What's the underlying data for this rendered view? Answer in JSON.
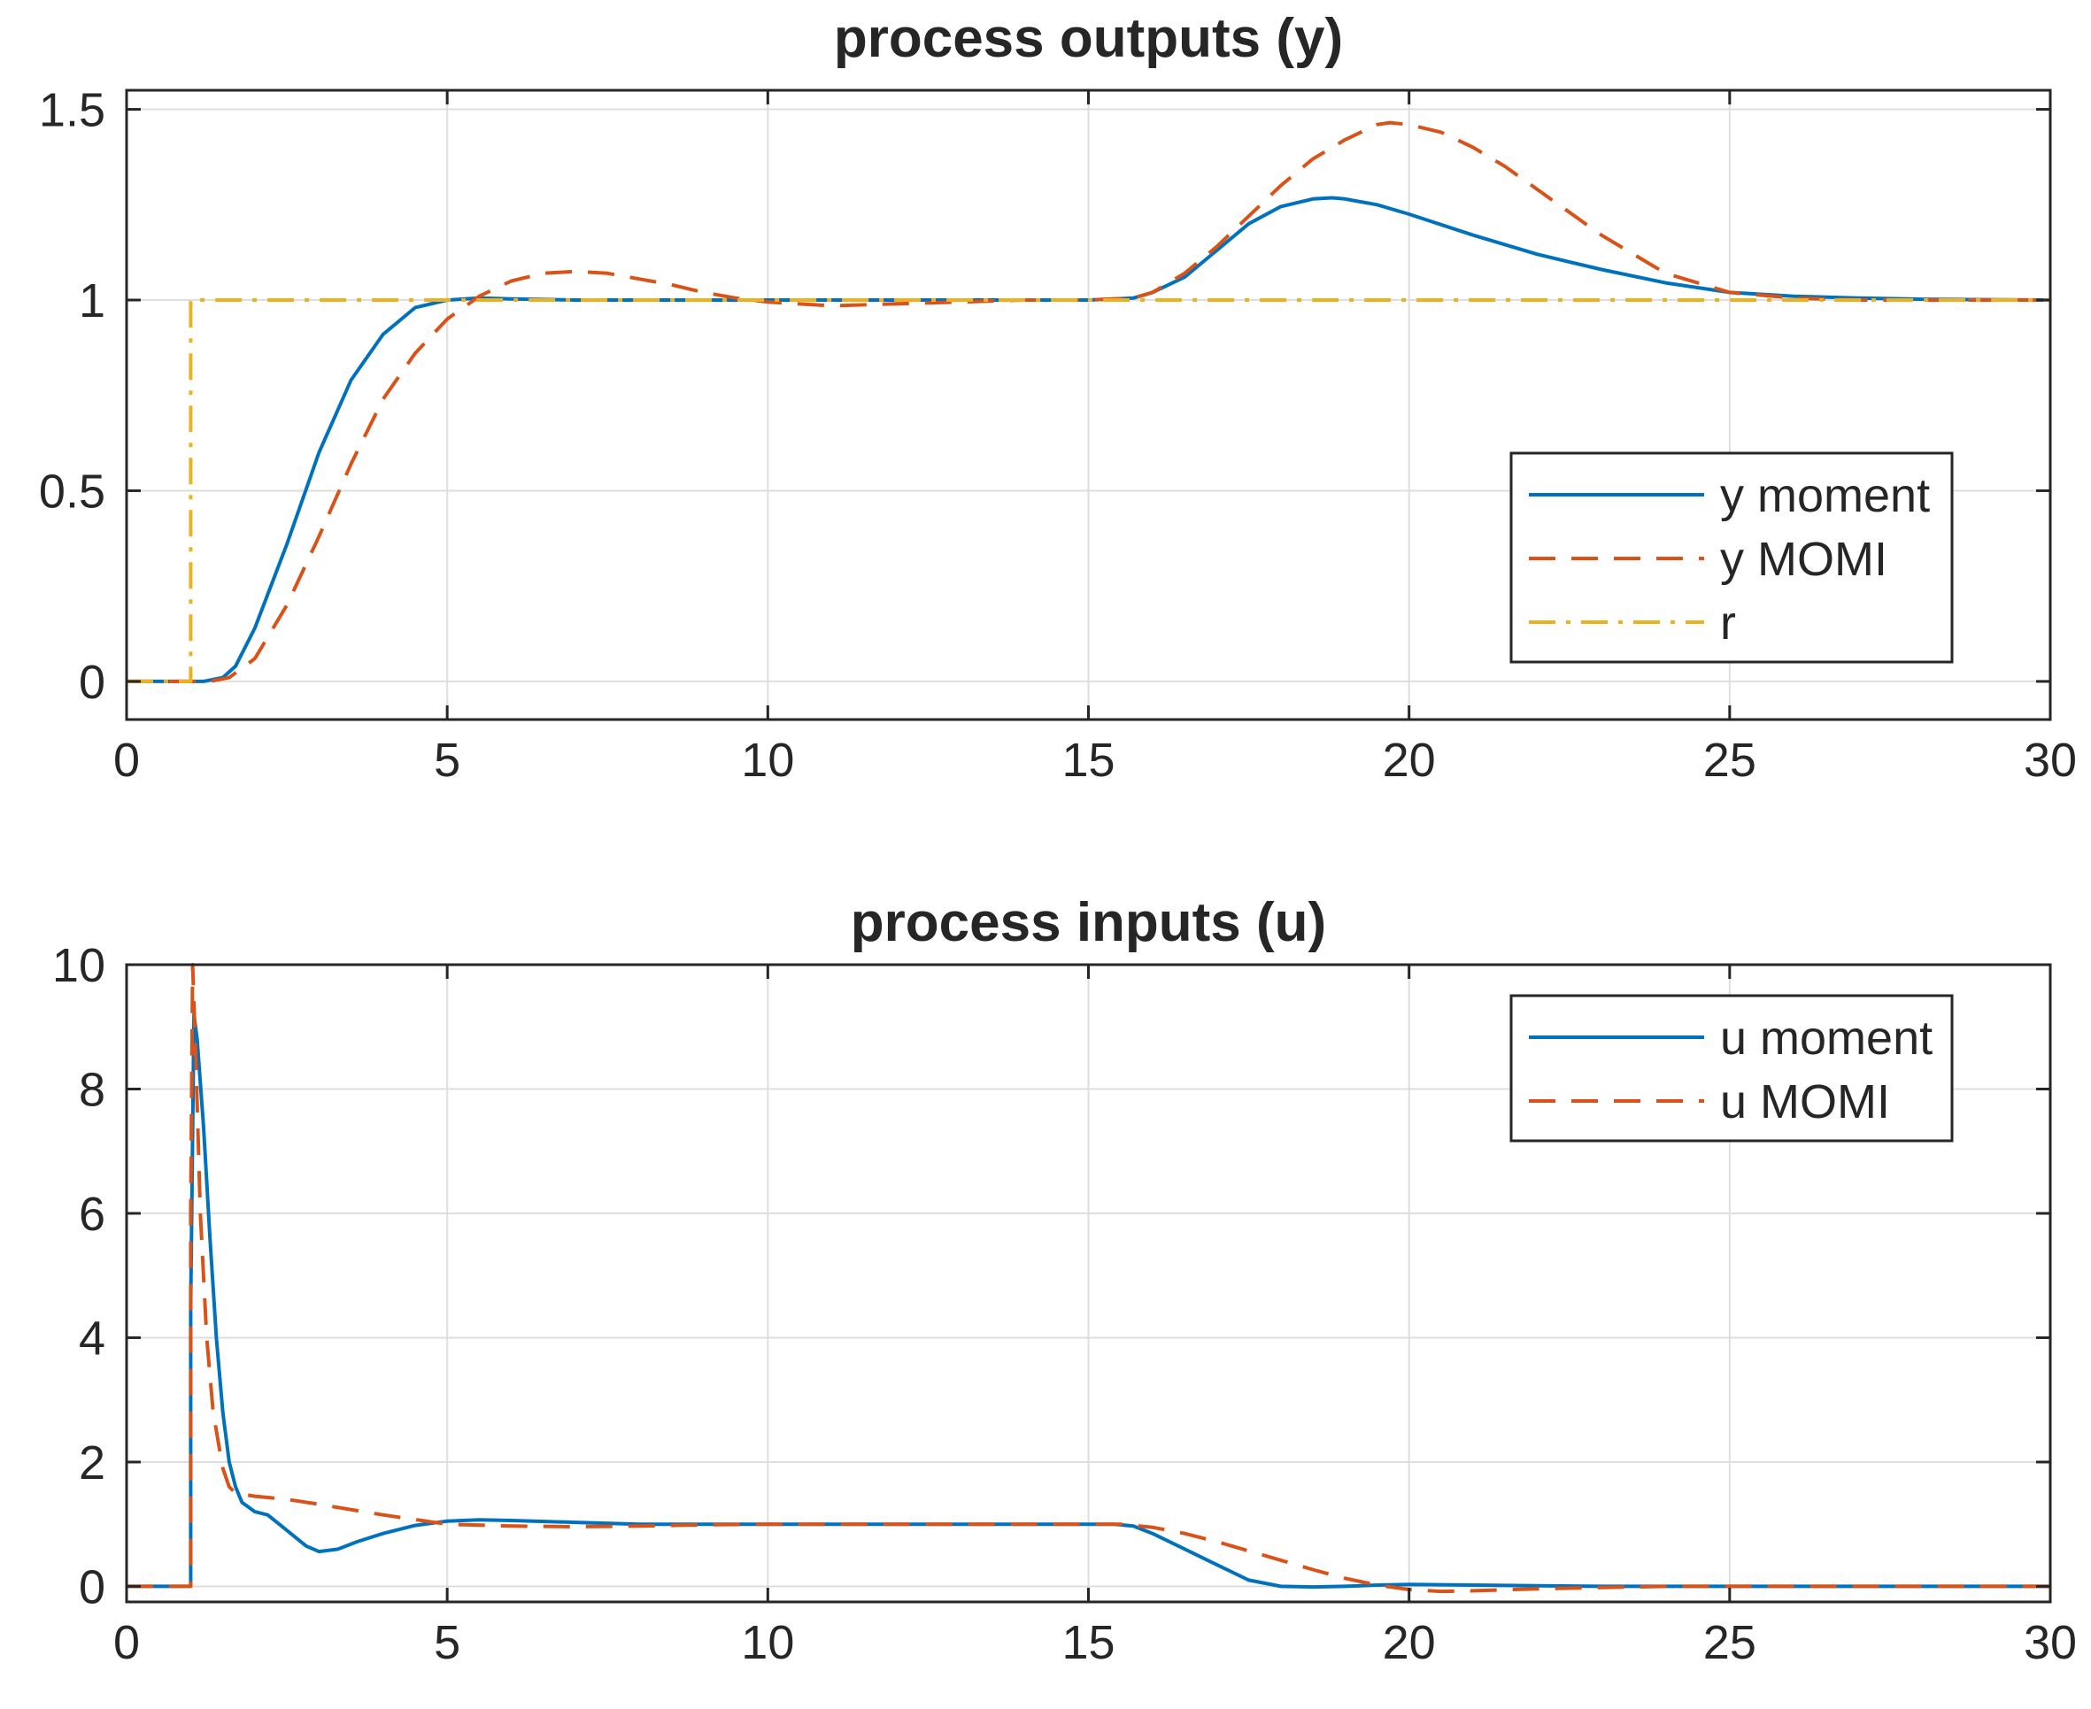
{
  "chart_data": [
    {
      "type": "line",
      "title": "process outputs (y)",
      "xlabel": "",
      "ylabel": "",
      "xlim": [
        0,
        30
      ],
      "ylim": [
        -0.1,
        1.55
      ],
      "xticks": [
        0,
        5,
        10,
        15,
        20,
        25,
        30
      ],
      "yticks": [
        0,
        0.5,
        1,
        1.5
      ],
      "xtick_labels": [
        "0",
        "5",
        "10",
        "15",
        "20",
        "25",
        "30"
      ],
      "ytick_labels": [
        "0",
        "0.5",
        "1",
        "1.5"
      ],
      "grid": true,
      "legend_position": "bottom-right",
      "series": [
        {
          "name": "y moment",
          "color": "#0072BD",
          "style": "solid",
          "x": [
            0,
            1,
            1.2,
            1.5,
            1.7,
            2,
            2.5,
            3,
            3.5,
            4,
            4.5,
            5,
            5.5,
            6,
            7,
            8,
            9,
            10,
            12,
            14,
            15,
            15.7,
            16,
            16.5,
            17,
            17.5,
            18,
            18.5,
            18.8,
            19,
            19.5,
            20,
            21,
            22,
            23,
            24,
            25,
            26,
            27,
            28,
            30
          ],
          "y": [
            0,
            0,
            0,
            0.01,
            0.04,
            0.14,
            0.36,
            0.6,
            0.79,
            0.91,
            0.98,
            1.0,
            1.005,
            1.003,
            1.0,
            1.0,
            1.0,
            1.0,
            1.0,
            1.0,
            1.0,
            1.005,
            1.02,
            1.06,
            1.13,
            1.2,
            1.245,
            1.265,
            1.268,
            1.265,
            1.25,
            1.225,
            1.17,
            1.12,
            1.08,
            1.045,
            1.02,
            1.01,
            1.005,
            1.002,
            1.0
          ]
        },
        {
          "name": "y MOMI",
          "color": "#D95319",
          "style": "dashed",
          "x": [
            0,
            1,
            1.3,
            1.6,
            2,
            2.5,
            3,
            3.5,
            4,
            4.5,
            5,
            5.5,
            6,
            6.5,
            7,
            7.5,
            8,
            8.5,
            9,
            9.5,
            10,
            11,
            12,
            13,
            14,
            15,
            15.7,
            16,
            16.5,
            17,
            17.5,
            18,
            18.5,
            19,
            19.5,
            19.7,
            20,
            20.5,
            21,
            21.5,
            22,
            23,
            24,
            25,
            26,
            27,
            28,
            30
          ],
          "y": [
            0,
            0,
            0,
            0.01,
            0.06,
            0.2,
            0.38,
            0.57,
            0.74,
            0.86,
            0.95,
            1.01,
            1.05,
            1.07,
            1.075,
            1.07,
            1.055,
            1.04,
            1.02,
            1.005,
            0.995,
            0.985,
            0.99,
            0.995,
            1.0,
            1.0,
            1.005,
            1.02,
            1.07,
            1.14,
            1.22,
            1.3,
            1.37,
            1.42,
            1.46,
            1.465,
            1.46,
            1.44,
            1.4,
            1.35,
            1.29,
            1.17,
            1.07,
            1.02,
            1.005,
            1.0,
            1.0,
            1.0
          ]
        },
        {
          "name": "r",
          "color": "#EDB120",
          "style": "dashdot",
          "x": [
            0,
            1,
            1,
            30
          ],
          "y": [
            0,
            0,
            1,
            1
          ]
        }
      ]
    },
    {
      "type": "line",
      "title": "process inputs (u)",
      "xlabel": "",
      "ylabel": "",
      "xlim": [
        0,
        30
      ],
      "ylim": [
        -0.25,
        10
      ],
      "xticks": [
        0,
        5,
        10,
        15,
        20,
        25,
        30
      ],
      "yticks": [
        0,
        2,
        4,
        6,
        8,
        10
      ],
      "xtick_labels": [
        "0",
        "5",
        "10",
        "15",
        "20",
        "25",
        "30"
      ],
      "ytick_labels": [
        "0",
        "2",
        "4",
        "6",
        "8",
        "10"
      ],
      "grid": true,
      "legend_position": "top-right",
      "series": [
        {
          "name": "u moment",
          "color": "#0072BD",
          "style": "solid",
          "x": [
            0,
            1,
            1.0,
            1.05,
            1.1,
            1.2,
            1.3,
            1.4,
            1.5,
            1.6,
            1.7,
            1.8,
            2.0,
            2.2,
            2.5,
            2.8,
            3.0,
            3.3,
            3.6,
            4.0,
            4.5,
            5.0,
            5.5,
            6,
            7,
            8,
            9,
            10,
            12,
            14,
            15,
            15.4,
            15.7,
            16,
            16.5,
            17,
            17.5,
            18,
            18.5,
            19,
            19.5,
            20,
            21,
            22,
            23,
            25,
            27,
            30
          ],
          "y": [
            0,
            0,
            4.5,
            9.2,
            8.8,
            7.4,
            5.6,
            4.0,
            2.8,
            2.0,
            1.6,
            1.35,
            1.2,
            1.15,
            0.9,
            0.65,
            0.56,
            0.6,
            0.72,
            0.85,
            0.98,
            1.05,
            1.07,
            1.06,
            1.03,
            1.0,
            1.0,
            1.0,
            1.0,
            1.0,
            1.0,
            1.0,
            0.97,
            0.85,
            0.6,
            0.35,
            0.1,
            0.0,
            -0.01,
            0.0,
            0.02,
            0.03,
            0.02,
            0.01,
            0.0,
            0.0,
            0.0,
            0.0
          ]
        },
        {
          "name": "u MOMI",
          "color": "#D95319",
          "style": "dashed",
          "x": [
            0,
            1,
            1.0,
            1.03,
            1.08,
            1.15,
            1.25,
            1.35,
            1.5,
            1.6,
            1.7,
            2.0,
            2.5,
            3,
            4,
            5,
            6,
            7,
            8,
            9,
            10,
            12,
            14,
            15,
            15.5,
            16,
            16.5,
            17,
            17.5,
            18,
            18.5,
            19,
            19.5,
            20,
            20.5,
            21,
            22,
            23,
            24,
            25,
            27,
            30
          ],
          "y": [
            0,
            0,
            6.0,
            10.0,
            8.5,
            6.0,
            4.0,
            2.8,
            1.9,
            1.6,
            1.5,
            1.45,
            1.4,
            1.32,
            1.15,
            1.0,
            0.97,
            0.96,
            0.97,
            0.99,
            1.0,
            1.0,
            1.0,
            1.0,
            1.0,
            0.95,
            0.85,
            0.72,
            0.57,
            0.42,
            0.27,
            0.13,
            0.02,
            -0.05,
            -0.08,
            -0.07,
            -0.04,
            -0.02,
            0.0,
            0.0,
            0.0,
            0.0
          ]
        }
      ]
    }
  ]
}
